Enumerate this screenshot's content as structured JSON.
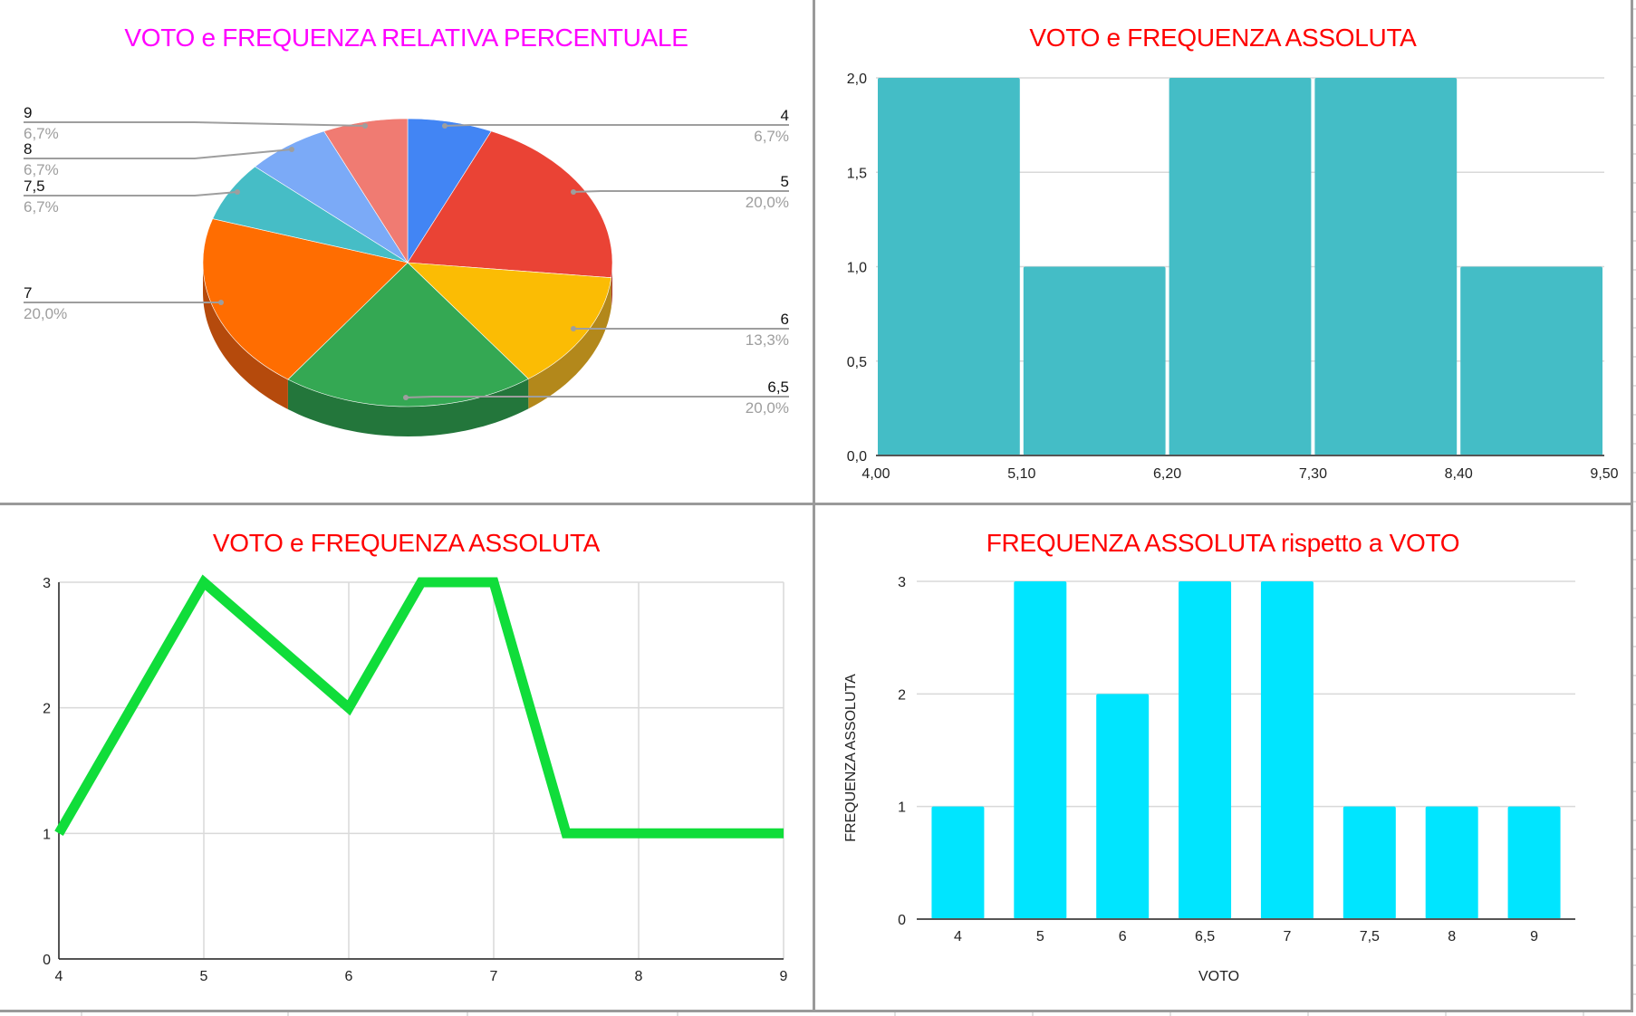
{
  "colors": {
    "pie_title": "#FF00FF",
    "chart_title": "#FF0000",
    "histogram_bar": "#44BDC6",
    "line": "#10DD3A",
    "bar": "#00E5FF",
    "gridline": "#D9D9D9",
    "panel_border": "#9A9A9A"
  },
  "panels": {
    "pie": {
      "title": "VOTO e FREQUENZA RELATIVA PERCENTUALE"
    },
    "histogram": {
      "title": "VOTO e FREQUENZA ASSOLUTA"
    },
    "line": {
      "title": "VOTO e FREQUENZA ASSOLUTA"
    },
    "bar": {
      "title": "FREQUENZA ASSOLUTA rispetto a VOTO",
      "xlabel": "VOTO",
      "ylabel": "FREQUENZA ASSOLUTA"
    }
  },
  "chart_data": [
    {
      "type": "pie",
      "title": "VOTO e FREQUENZA RELATIVA PERCENTUALE",
      "style": "3d",
      "categories": [
        "4",
        "5",
        "6",
        "6,5",
        "7",
        "7,5",
        "8",
        "9"
      ],
      "values": [
        6.7,
        20.0,
        13.3,
        20.0,
        20.0,
        6.7,
        6.7,
        6.7
      ],
      "labels": [
        "6,7%",
        "20,0%",
        "13,3%",
        "20,0%",
        "20,0%",
        "6,7%",
        "6,7%",
        "6,7%"
      ],
      "colors": [
        "#4285F4",
        "#EA4335",
        "#FBBC04",
        "#34A853",
        "#FF6D01",
        "#46BDC6",
        "#7BAAF7",
        "#F07B72"
      ],
      "side_colors": [
        "#2F5FAE",
        "#A83026",
        "#B3881B",
        "#23763B",
        "#B54A0C",
        "#318990",
        "#587AB0",
        "#AE5851"
      ],
      "legend_position": "labeled leader lines"
    },
    {
      "type": "bar",
      "subtype": "histogram",
      "title": "VOTO e FREQUENZA ASSOLUTA",
      "bins": [
        [
          4.0,
          5.1
        ],
        [
          5.1,
          6.2
        ],
        [
          6.2,
          7.3
        ],
        [
          7.3,
          8.4
        ],
        [
          8.4,
          9.5
        ]
      ],
      "values": [
        2,
        1,
        2,
        2,
        1
      ],
      "xticks": [
        "4,00",
        "5,10",
        "6,20",
        "7,30",
        "8,40",
        "9,50"
      ],
      "yticks": [
        "0,0",
        "0,5",
        "1,0",
        "1,5",
        "2,0"
      ],
      "xlim": [
        4.0,
        9.5
      ],
      "ylim": [
        0,
        2
      ],
      "xlabel": "",
      "ylabel": "",
      "grid": true
    },
    {
      "type": "line",
      "title": "VOTO e FREQUENZA ASSOLUTA",
      "x": [
        4,
        5,
        6,
        6.5,
        7,
        7.5,
        8,
        9
      ],
      "y": [
        1,
        3,
        2,
        3,
        3,
        1,
        1,
        1
      ],
      "xticks": [
        "4",
        "5",
        "6",
        "7",
        "8",
        "9"
      ],
      "yticks": [
        "0",
        "1",
        "2",
        "3"
      ],
      "xlim": [
        4,
        9
      ],
      "ylim": [
        0,
        3
      ],
      "xlabel": "",
      "ylabel": "",
      "grid": true
    },
    {
      "type": "bar",
      "title": "FREQUENZA ASSOLUTA rispetto a VOTO",
      "categories": [
        "4",
        "5",
        "6",
        "6,5",
        "7",
        "7,5",
        "8",
        "9"
      ],
      "values": [
        1,
        3,
        2,
        3,
        3,
        1,
        1,
        1
      ],
      "yticks": [
        "0",
        "1",
        "2",
        "3"
      ],
      "ylim": [
        0,
        3
      ],
      "xlabel": "VOTO",
      "ylabel": "FREQUENZA ASSOLUTA",
      "grid": true
    }
  ]
}
